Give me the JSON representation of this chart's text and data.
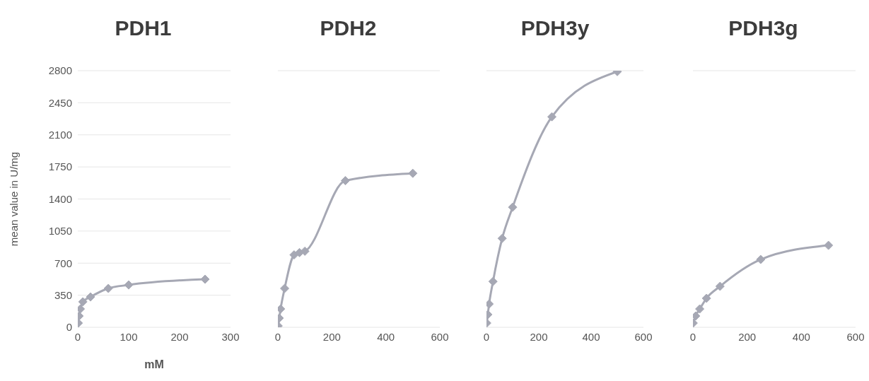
{
  "chart_data": [
    {
      "type": "line",
      "title": "PDH1",
      "xlabel": "mM",
      "ylabel": "mean value in U/mg",
      "x": [
        1,
        2.5,
        5,
        10,
        25,
        60,
        100,
        250
      ],
      "series": [
        {
          "color": "#a6a8b4",
          "values": [
            46,
            123,
            200,
            278,
            331,
            424,
            462,
            524
          ]
        }
      ],
      "xlim": [
        0,
        300
      ],
      "xticks": [
        0,
        100,
        200,
        300
      ],
      "ylim": [
        0,
        2800
      ],
      "yticks": [
        0,
        350,
        700,
        1050,
        1400,
        1750,
        2100,
        2450,
        2800
      ],
      "grid": "y",
      "marker": "diamond",
      "line_style": "solid"
    },
    {
      "type": "line",
      "title": "PDH2",
      "x": [
        1,
        5,
        10,
        25,
        60,
        80,
        100,
        250,
        500
      ],
      "series": [
        {
          "color": "#a6a8b4",
          "values": [
            15,
            100,
            200,
            424,
            790,
            815,
            830,
            1600,
            1680
          ]
        }
      ],
      "xlim": [
        0,
        600
      ],
      "xticks": [
        0,
        200,
        400,
        600
      ],
      "ylim": [
        0,
        2800
      ],
      "yticks": [
        0,
        350,
        700,
        1050,
        1400,
        1750,
        2100,
        2450,
        2800
      ],
      "grid": "y",
      "marker": "diamond",
      "line_style": "solid",
      "tick_labels": "x"
    },
    {
      "type": "line",
      "title": "PDH3y",
      "x": [
        1,
        5,
        10,
        25,
        60,
        100,
        250,
        500
      ],
      "series": [
        {
          "color": "#a6a8b4",
          "values": [
            46,
            139,
            254,
            500,
            970,
            1310,
            2297,
            2790
          ]
        }
      ],
      "xlim": [
        0,
        600
      ],
      "xticks": [
        0,
        200,
        400,
        600
      ],
      "ylim": [
        0,
        2800
      ],
      "yticks": [
        0,
        350,
        700,
        1050,
        1400,
        1750,
        2100,
        2450,
        2800
      ],
      "grid": "y",
      "marker": "diamond",
      "line_style": "solid",
      "tick_labels": "x"
    },
    {
      "type": "line",
      "title": "PDH3g",
      "x": [
        1,
        10,
        25,
        50,
        100,
        250,
        500
      ],
      "series": [
        {
          "color": "#a6a8b4",
          "values": [
            46,
            123,
            200,
            316,
            447,
            740,
            894
          ]
        }
      ],
      "xlim": [
        0,
        600
      ],
      "xticks": [
        0,
        200,
        400,
        600
      ],
      "ylim": [
        0,
        2800
      ],
      "yticks": [
        0,
        350,
        700,
        1050,
        1400,
        1750,
        2100,
        2450,
        2800
      ],
      "grid": "y",
      "marker": "diamond",
      "line_style": "solid",
      "tick_labels": "x"
    }
  ]
}
